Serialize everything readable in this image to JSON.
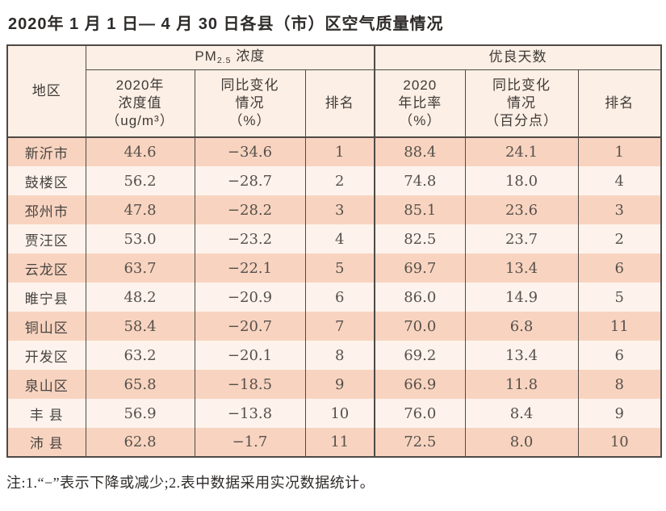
{
  "page": {
    "title": "2020年 1 月 1 日— 4 月 30 日各县（市）区空气质量情况",
    "footnote": "注:1.“−”表示下降或减少;2.表中数据采用实况数据统计。"
  },
  "colors": {
    "row-salmon": "#f8d4c0",
    "row-cream": "#fdf3ec",
    "header-bg": "#fcefe5",
    "border": "#4f4a46",
    "text": "#474340"
  },
  "table": {
    "headers": {
      "region": "地区",
      "pm25_group": {
        "prefix": "PM",
        "sub": "2.5",
        "suffix": " 浓度"
      },
      "days_group": "优良天数",
      "pm_value": "2020年\n浓度值\n（ug/m³）",
      "pm_change": "同比变化\n情况\n（%）",
      "pm_rank": "排名",
      "days_rate": "2020\n年比率\n（%）",
      "days_change": "同比变化\n情况\n（百分点）",
      "days_rank": "排名"
    },
    "rows": [
      {
        "region": "新沂市",
        "pm_value": "44.6",
        "pm_change": "−34.6",
        "pm_rank": "1",
        "days_rate": "88.4",
        "days_change": "24.1",
        "days_rank": "1"
      },
      {
        "region": "鼓楼区",
        "pm_value": "56.2",
        "pm_change": "−28.7",
        "pm_rank": "2",
        "days_rate": "74.8",
        "days_change": "18.0",
        "days_rank": "4"
      },
      {
        "region": "邳州市",
        "pm_value": "47.8",
        "pm_change": "−28.2",
        "pm_rank": "3",
        "days_rate": "85.1",
        "days_change": "23.6",
        "days_rank": "3"
      },
      {
        "region": "贾汪区",
        "pm_value": "53.0",
        "pm_change": "−23.2",
        "pm_rank": "4",
        "days_rate": "82.5",
        "days_change": "23.7",
        "days_rank": "2"
      },
      {
        "region": "云龙区",
        "pm_value": "63.7",
        "pm_change": "−22.1",
        "pm_rank": "5",
        "days_rate": "69.7",
        "days_change": "13.4",
        "days_rank": "6"
      },
      {
        "region": "睢宁县",
        "pm_value": "48.2",
        "pm_change": "−20.9",
        "pm_rank": "6",
        "days_rate": "86.0",
        "days_change": "14.9",
        "days_rank": "5"
      },
      {
        "region": "铜山区",
        "pm_value": "58.4",
        "pm_change": "−20.7",
        "pm_rank": "7",
        "days_rate": "70.0",
        "days_change": "6.8",
        "days_rank": "11"
      },
      {
        "region": "开发区",
        "pm_value": "63.2",
        "pm_change": "−20.1",
        "pm_rank": "8",
        "days_rate": "69.2",
        "days_change": "13.4",
        "days_rank": "6"
      },
      {
        "region": "泉山区",
        "pm_value": "65.8",
        "pm_change": "−18.5",
        "pm_rank": "9",
        "days_rate": "66.9",
        "days_change": "11.8",
        "days_rank": "8"
      },
      {
        "region": "丰 县",
        "pm_value": "56.9",
        "pm_change": "−13.8",
        "pm_rank": "10",
        "days_rate": "76.0",
        "days_change": "8.4",
        "days_rank": "9"
      },
      {
        "region": "沛 县",
        "pm_value": "62.8",
        "pm_change": "−1.7",
        "pm_rank": "11",
        "days_rate": "72.5",
        "days_change": "8.0",
        "days_rank": "10"
      }
    ]
  }
}
